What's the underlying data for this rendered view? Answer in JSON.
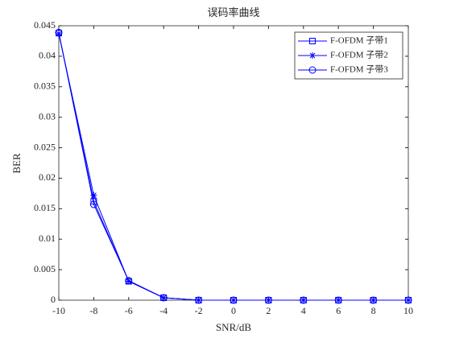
{
  "chart_data": {
    "type": "line",
    "title": "误码率曲线",
    "x_label": "SNR/dB",
    "y_label": "BER",
    "x": [
      -10,
      -8,
      -6,
      -4,
      -2,
      0,
      2,
      4,
      6,
      8,
      10
    ],
    "series": [
      {
        "name": "F-OFDM 子带1",
        "color": "#0000ff",
        "marker": "square",
        "values": [
          0.0438,
          0.0162,
          0.0031,
          0.0004,
          0,
          0,
          0,
          0,
          0,
          0,
          0
        ]
      },
      {
        "name": "F-OFDM 子带2",
        "color": "#0000ff",
        "marker": "star",
        "values": [
          0.0437,
          0.0172,
          0.0031,
          0.0004,
          0,
          0,
          0,
          0,
          0,
          0,
          0
        ]
      },
      {
        "name": "F-OFDM 子带3",
        "color": "#0000ff",
        "marker": "circle",
        "values": [
          0.0439,
          0.0157,
          0.0032,
          0.0004,
          0,
          0,
          0,
          0,
          0,
          0,
          0
        ]
      }
    ],
    "xlim": [
      -10,
      10
    ],
    "xticks": [
      -10,
      -8,
      -6,
      -4,
      -2,
      0,
      2,
      4,
      6,
      8,
      10
    ],
    "ylim": [
      0,
      0.045
    ],
    "yticks": [
      0,
      0.005,
      0.01,
      0.015,
      0.02,
      0.025,
      0.03,
      0.035,
      0.04,
      0.045
    ],
    "grid": false,
    "legend": "upper right"
  }
}
